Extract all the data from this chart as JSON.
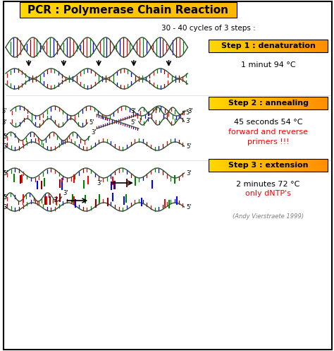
{
  "title": "PCR : Polymerase Chain Reaction",
  "title_bg": "#FFD700",
  "bg_color": "#FFFFFF",
  "cycles_text": "30 - 40 cycles of 3 steps :",
  "step1_label": "Step 1 : denaturation",
  "step1_detail": "1 minut 94 °C",
  "step2_label": "Step 2 : annealing",
  "step2_detail": "45 seconds 54 °C",
  "step2_extra": "forward and reverse\nprimers !!!",
  "step3_label": "Step 3 : extension",
  "step3_detail": "2 minutes 72 °C",
  "step3_extra": "only dNTP's",
  "footer": "(Andy Vierstraete 1999)",
  "dna_colors": [
    "#FF0000",
    "#008000",
    "#0000FF",
    "#8B0000"
  ]
}
